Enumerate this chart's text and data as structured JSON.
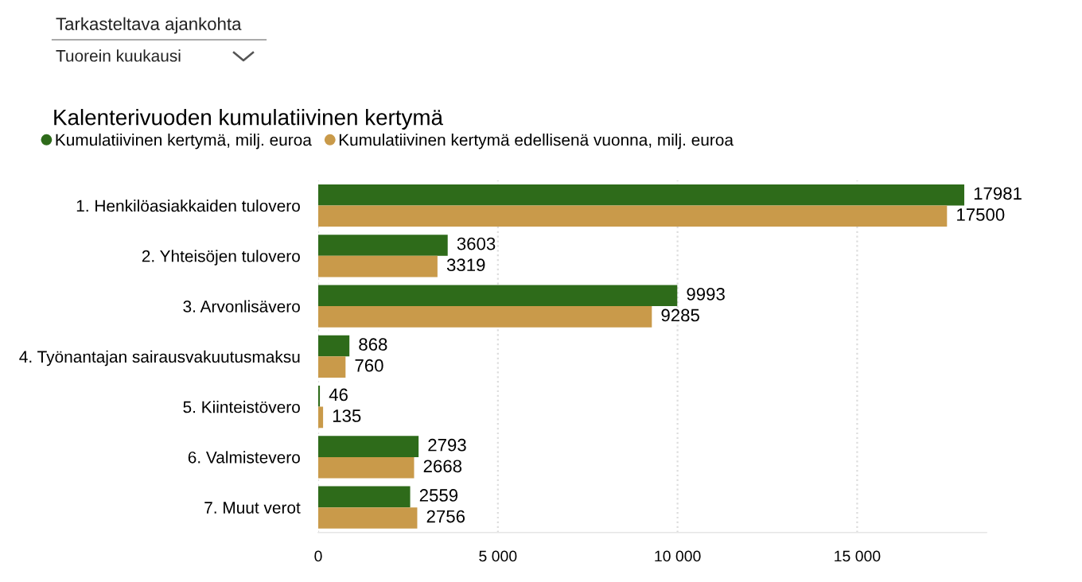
{
  "chart_data": {
    "type": "bar",
    "orientation": "horizontal",
    "title": "Kalenterivuoden kumulatiivinen kertymä",
    "annotations": [
      "Tarkasteltava ajankohta",
      "Tuorein kuukausi"
    ],
    "categories": [
      "1. Henkilöasiakkaiden tulovero",
      "2. Yhteisöjen tulovero",
      "3. Arvonlisävero",
      "4. Työnantajan sairausvakuutusmaksu",
      "5. Kiinteistövero",
      "6. Valmistevero",
      "7. Muut verot"
    ],
    "series": [
      {
        "name": "Kumulatiivinen kertymä, milj. euroa",
        "color": "#2e6b1a",
        "values": [
          17981,
          3603,
          9993,
          868,
          46,
          2793,
          2559
        ]
      },
      {
        "name": "Kumulatiivinen kertymä edellisenä vuonna, milj. euroa",
        "color": "#c99a4a",
        "values": [
          17500,
          3319,
          9285,
          760,
          135,
          2668,
          2756
        ]
      }
    ],
    "xlim": [
      0,
      18600
    ],
    "xticks": [
      0,
      {
        "value": 5000,
        "label": "5 000"
      },
      {
        "value": 10000,
        "label": "10 000"
      },
      {
        "value": 15000,
        "label": "15 000"
      }
    ],
    "grid": "x",
    "legend": "top left",
    "marker": "circle",
    "data_labels": true
  }
}
